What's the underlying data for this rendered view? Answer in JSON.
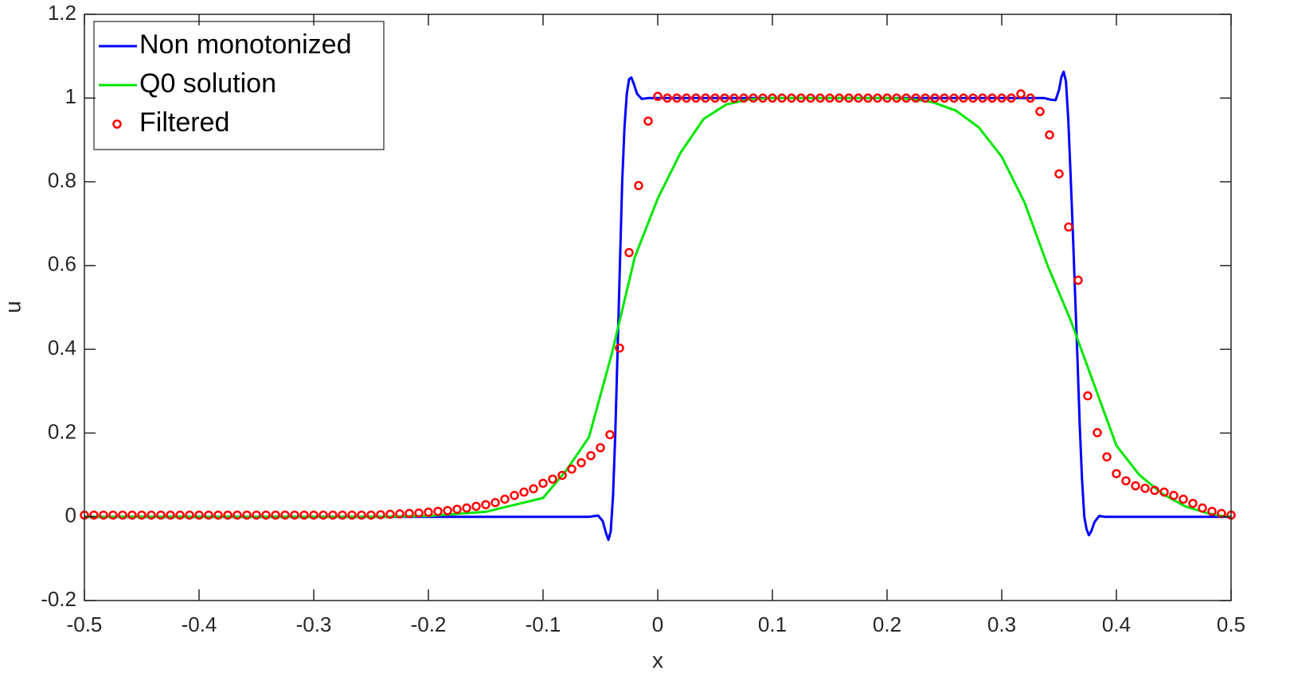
{
  "chart_data": {
    "type": "line",
    "xlabel": "x",
    "ylabel": "u",
    "xlim": [
      -0.5,
      0.5
    ],
    "ylim": [
      -0.2,
      1.2
    ],
    "xticks": [
      -0.5,
      -0.4,
      -0.3,
      -0.2,
      -0.1,
      0,
      0.1,
      0.2,
      0.3,
      0.4,
      0.5
    ],
    "yticks": [
      -0.2,
      0,
      0.2,
      0.4,
      0.6,
      0.8,
      1,
      1.2
    ],
    "legend": "upper left",
    "series": [
      {
        "name": "Non monotonized",
        "color": "#0000ff",
        "mode": "line",
        "x": [
          -0.5,
          -0.1,
          -0.06,
          -0.052,
          -0.048,
          -0.045,
          -0.043,
          -0.041,
          -0.039,
          -0.037,
          -0.035,
          -0.033,
          -0.031,
          -0.029,
          -0.027,
          -0.025,
          -0.023,
          -0.021,
          -0.018,
          -0.014,
          -0.008,
          0.33,
          0.337,
          0.343,
          0.347,
          0.35,
          0.352,
          0.354,
          0.356,
          0.358,
          0.36,
          0.362,
          0.364,
          0.366,
          0.368,
          0.37,
          0.372,
          0.374,
          0.376,
          0.378,
          0.381,
          0.385,
          0.39,
          0.5
        ],
        "values": [
          0,
          0,
          0,
          0.003,
          -0.01,
          -0.04,
          -0.055,
          -0.035,
          0.05,
          0.2,
          0.4,
          0.6,
          0.8,
          0.93,
          1.01,
          1.045,
          1.049,
          1.035,
          1.01,
          0.998,
          1.0,
          1.0,
          1.0,
          0.996,
          0.995,
          1.02,
          1.05,
          1.063,
          1.04,
          0.95,
          0.82,
          0.68,
          0.53,
          0.38,
          0.22,
          0.09,
          0.0,
          -0.03,
          -0.044,
          -0.035,
          -0.012,
          0.002,
          0,
          0
        ]
      },
      {
        "name": "Q0 solution",
        "color": "#00e600",
        "mode": "line",
        "x": [
          -0.5,
          -0.25,
          -0.2,
          -0.15,
          -0.1,
          -0.08,
          -0.06,
          -0.04,
          -0.02,
          0,
          0.02,
          0.04,
          0.06,
          0.08,
          0.1,
          0.2,
          0.22,
          0.24,
          0.26,
          0.28,
          0.3,
          0.32,
          0.34,
          0.36,
          0.38,
          0.4,
          0.42,
          0.44,
          0.46,
          0.48,
          0.49,
          0.5
        ],
        "values": [
          0,
          0,
          0.002,
          0.012,
          0.045,
          0.11,
          0.19,
          0.39,
          0.62,
          0.76,
          0.87,
          0.95,
          0.985,
          0.997,
          1.0,
          1.0,
          0.998,
          0.99,
          0.97,
          0.93,
          0.86,
          0.75,
          0.6,
          0.47,
          0.32,
          0.17,
          0.1,
          0.055,
          0.025,
          0.008,
          0.003,
          0.0
        ]
      },
      {
        "name": "Filtered",
        "color": "#ff0000",
        "mode": "markers",
        "x": [
          -0.5,
          -0.49167,
          -0.48333,
          -0.475,
          -0.46667,
          -0.45833,
          -0.45,
          -0.44167,
          -0.43333,
          -0.425,
          -0.41667,
          -0.40833,
          -0.4,
          -0.39167,
          -0.38333,
          -0.375,
          -0.36667,
          -0.35833,
          -0.35,
          -0.34167,
          -0.33333,
          -0.325,
          -0.31667,
          -0.30833,
          -0.3,
          -0.29167,
          -0.28333,
          -0.275,
          -0.26667,
          -0.25833,
          -0.25,
          -0.24167,
          -0.23333,
          -0.225,
          -0.21667,
          -0.20833,
          -0.2,
          -0.19167,
          -0.18333,
          -0.175,
          -0.16667,
          -0.15833,
          -0.15,
          -0.14167,
          -0.13333,
          -0.125,
          -0.11667,
          -0.10833,
          -0.1,
          -0.09167,
          -0.08333,
          -0.075,
          -0.06667,
          -0.05833,
          -0.05,
          -0.04167,
          -0.03333,
          -0.025,
          -0.01667,
          -0.00833,
          0,
          0.00833,
          0.01667,
          0.025,
          0.03333,
          0.04167,
          0.05,
          0.05833,
          0.06667,
          0.075,
          0.08333,
          0.09167,
          0.1,
          0.10833,
          0.11667,
          0.125,
          0.13333,
          0.14167,
          0.15,
          0.15833,
          0.16667,
          0.175,
          0.18333,
          0.19167,
          0.2,
          0.20833,
          0.21667,
          0.225,
          0.23333,
          0.24167,
          0.25,
          0.25833,
          0.26667,
          0.275,
          0.28333,
          0.29167,
          0.3,
          0.30833,
          0.31667,
          0.325,
          0.33333,
          0.34167,
          0.35,
          0.35833,
          0.36667,
          0.375,
          0.38333,
          0.39167,
          0.4,
          0.40833,
          0.41667,
          0.425,
          0.43333,
          0.44167,
          0.45,
          0.45833,
          0.46667,
          0.475,
          0.48333,
          0.49167,
          0.5
        ],
        "values": [
          0.004,
          0.004,
          0.004,
          0.004,
          0.004,
          0.004,
          0.004,
          0.004,
          0.004,
          0.004,
          0.004,
          0.004,
          0.004,
          0.004,
          0.004,
          0.004,
          0.004,
          0.004,
          0.004,
          0.004,
          0.004,
          0.004,
          0.004,
          0.004,
          0.004,
          0.004,
          0.004,
          0.004,
          0.004,
          0.004,
          0.004,
          0.005,
          0.006,
          0.007,
          0.008,
          0.009,
          0.011,
          0.013,
          0.015,
          0.018,
          0.021,
          0.025,
          0.029,
          0.034,
          0.042,
          0.051,
          0.059,
          0.067,
          0.08,
          0.09,
          0.099,
          0.114,
          0.129,
          0.146,
          0.165,
          0.196,
          0.403,
          0.631,
          0.791,
          0.945,
          1.004,
          1.0,
          1.0,
          1.0,
          1.0,
          1.0,
          1.0,
          1.0,
          1.0,
          1.0,
          1.0,
          1.0,
          1.0,
          1.0,
          1.0,
          1.0,
          1.0,
          1.0,
          1.0,
          1.0,
          1.0,
          1.0,
          1.0,
          1.0,
          1.0,
          1.0,
          1.0,
          1.0,
          1.0,
          1.0,
          1.0,
          1.0,
          1.0,
          1.0,
          1.0,
          1.0,
          1.0,
          1.0,
          1.01,
          1.0,
          0.968,
          0.912,
          0.819,
          0.692,
          0.565,
          0.289,
          0.201,
          0.143,
          0.103,
          0.086,
          0.074,
          0.068,
          0.063,
          0.059,
          0.051,
          0.042,
          0.032,
          0.021,
          0.013,
          0.008,
          0.004
        ]
      }
    ]
  }
}
